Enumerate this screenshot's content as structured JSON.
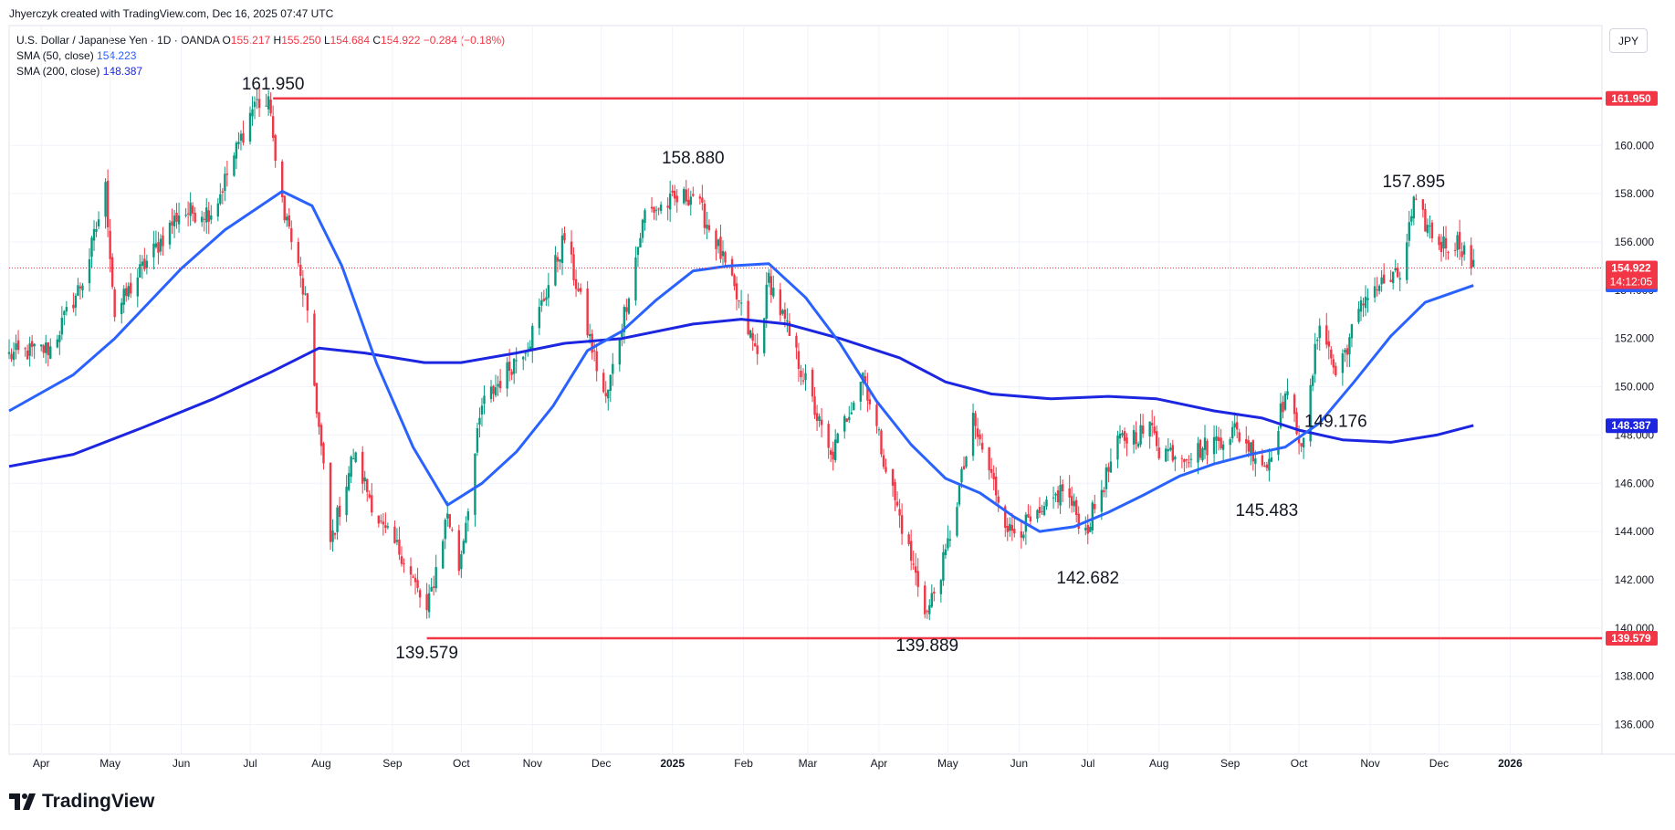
{
  "header": {
    "credit": "Jhyerczyk created with TradingView.com, Dec 16, 2025 07:47 UTC",
    "symbol": "U.S. Dollar / Japanese Yen · 1D · OANDA",
    "o_label": "O",
    "o_value": "155.217",
    "h_label": "H",
    "h_value": "155.250",
    "l_label": "L",
    "l_value": "154.684",
    "c_label": "C",
    "c_value": "154.922",
    "change": "−0.284 (−0.18%)",
    "sma50_label": "SMA (50, close)",
    "sma50_value": "154.223",
    "sma200_label": "SMA (200, close)",
    "sma200_value": "148.387"
  },
  "currency_button": "JPY",
  "brand": "TradingView",
  "colors": {
    "up": "#089981",
    "down": "#f23645",
    "sma50": "#2962ff",
    "sma200": "#1c26e0",
    "level": "#f23645",
    "grid": "#f0f3fa",
    "axis_text": "#131722"
  },
  "chart_data": {
    "type": "candlestick",
    "x_range": [
      "2024-03-18",
      "2026-02-10"
    ],
    "ylim": [
      135,
      163
    ],
    "y_ticks": [
      136,
      138,
      140,
      142,
      144,
      146,
      148,
      150,
      152,
      154,
      156,
      158,
      160
    ],
    "y_tick_labels": [
      "136.000",
      "138.000",
      "140.000",
      "142.000",
      "144.000",
      "146.000",
      "148.000",
      "150.000",
      "152.000",
      "154.000",
      "156.000",
      "158.000",
      "160.000"
    ],
    "x_ticks": [
      {
        "date": "2024-04-01",
        "label": "Apr",
        "bold": false
      },
      {
        "date": "2024-05-01",
        "label": "May",
        "bold": false
      },
      {
        "date": "2024-06-01",
        "label": "Jun",
        "bold": false
      },
      {
        "date": "2024-07-01",
        "label": "Jul",
        "bold": false
      },
      {
        "date": "2024-08-01",
        "label": "Aug",
        "bold": false
      },
      {
        "date": "2024-09-01",
        "label": "Sep",
        "bold": false
      },
      {
        "date": "2024-10-01",
        "label": "Oct",
        "bold": false
      },
      {
        "date": "2024-11-01",
        "label": "Nov",
        "bold": false
      },
      {
        "date": "2024-12-01",
        "label": "Dec",
        "bold": false
      },
      {
        "date": "2025-01-01",
        "label": "2025",
        "bold": true
      },
      {
        "date": "2025-02-01",
        "label": "Feb",
        "bold": false
      },
      {
        "date": "2025-03-01",
        "label": "Mar",
        "bold": false
      },
      {
        "date": "2025-04-01",
        "label": "Apr",
        "bold": false
      },
      {
        "date": "2025-05-01",
        "label": "May",
        "bold": false
      },
      {
        "date": "2025-06-01",
        "label": "Jun",
        "bold": false
      },
      {
        "date": "2025-07-01",
        "label": "Jul",
        "bold": false
      },
      {
        "date": "2025-08-01",
        "label": "Aug",
        "bold": false
      },
      {
        "date": "2025-09-01",
        "label": "Sep",
        "bold": false
      },
      {
        "date": "2025-10-01",
        "label": "Oct",
        "bold": false
      },
      {
        "date": "2025-11-01",
        "label": "Nov",
        "bold": false
      },
      {
        "date": "2025-12-01",
        "label": "Dec",
        "bold": false
      },
      {
        "date": "2026-01-01",
        "label": "2026",
        "bold": true
      }
    ],
    "price_path": [
      [
        "2024-03-18",
        151.3
      ],
      [
        "2024-04-05",
        151.6
      ],
      [
        "2024-04-20",
        154.6
      ],
      [
        "2024-04-29",
        158.2
      ],
      [
        "2024-05-03",
        153.0
      ],
      [
        "2024-05-15",
        154.9
      ],
      [
        "2024-05-31",
        157.2
      ],
      [
        "2024-06-15",
        157.3
      ],
      [
        "2024-07-03",
        161.8
      ],
      [
        "2024-07-10",
        161.6
      ],
      [
        "2024-07-12",
        159.0
      ],
      [
        "2024-07-25",
        153.6
      ],
      [
        "2024-08-02",
        146.5
      ],
      [
        "2024-08-05",
        143.5
      ],
      [
        "2024-08-15",
        147.2
      ],
      [
        "2024-08-28",
        144.0
      ],
      [
        "2024-09-05",
        143.1
      ],
      [
        "2024-09-16",
        140.6
      ],
      [
        "2024-09-25",
        144.8
      ],
      [
        "2024-09-30",
        142.5
      ],
      [
        "2024-10-10",
        149.2
      ],
      [
        "2024-10-31",
        152.0
      ],
      [
        "2024-11-15",
        156.2
      ],
      [
        "2024-11-28",
        151.2
      ],
      [
        "2024-12-03",
        149.4
      ],
      [
        "2024-12-20",
        157.2
      ],
      [
        "2025-01-10",
        158.0
      ],
      [
        "2025-01-20",
        156.0
      ],
      [
        "2025-02-07",
        151.3
      ],
      [
        "2025-02-12",
        154.5
      ],
      [
        "2025-02-28",
        150.2
      ],
      [
        "2025-03-11",
        147.0
      ],
      [
        "2025-03-25",
        150.6
      ],
      [
        "2025-04-04",
        146.7
      ],
      [
        "2025-04-16",
        142.5
      ],
      [
        "2025-04-22",
        140.6
      ],
      [
        "2025-04-30",
        143.0
      ],
      [
        "2025-05-12",
        148.5
      ],
      [
        "2025-05-28",
        144.0
      ],
      [
        "2025-06-10",
        144.5
      ],
      [
        "2025-06-20",
        145.8
      ],
      [
        "2025-06-30",
        144.0
      ],
      [
        "2025-07-15",
        147.8
      ],
      [
        "2025-07-30",
        148.3
      ],
      [
        "2025-08-01",
        147.4
      ],
      [
        "2025-08-15",
        147.2
      ],
      [
        "2025-09-03",
        148.2
      ],
      [
        "2025-09-17",
        146.7
      ],
      [
        "2025-09-25",
        149.7
      ],
      [
        "2025-10-03",
        147.5
      ],
      [
        "2025-10-10",
        152.9
      ],
      [
        "2025-10-17",
        150.5
      ],
      [
        "2025-10-31",
        154.0
      ],
      [
        "2025-11-14",
        154.6
      ],
      [
        "2025-11-20",
        157.5
      ],
      [
        "2025-12-01",
        155.9
      ],
      [
        "2025-12-10",
        156.0
      ],
      [
        "2025-12-16",
        154.9
      ]
    ],
    "sma50": [
      [
        "2024-03-18",
        149.0
      ],
      [
        "2024-04-15",
        150.5
      ],
      [
        "2024-05-03",
        152.0
      ],
      [
        "2024-06-01",
        154.9
      ],
      [
        "2024-06-20",
        156.5
      ],
      [
        "2024-07-15",
        158.1
      ],
      [
        "2024-07-28",
        157.5
      ],
      [
        "2024-08-10",
        155.0
      ],
      [
        "2024-08-25",
        151.0
      ],
      [
        "2024-09-10",
        147.5
      ],
      [
        "2024-09-25",
        145.1
      ],
      [
        "2024-10-10",
        146.0
      ],
      [
        "2024-10-25",
        147.3
      ],
      [
        "2024-11-10",
        149.2
      ],
      [
        "2024-11-25",
        151.5
      ],
      [
        "2024-12-10",
        152.3
      ],
      [
        "2024-12-25",
        153.6
      ],
      [
        "2025-01-10",
        154.8
      ],
      [
        "2025-01-25",
        155.0
      ],
      [
        "2025-02-12",
        155.1
      ],
      [
        "2025-02-28",
        153.7
      ],
      [
        "2025-03-15",
        151.8
      ],
      [
        "2025-03-31",
        149.4
      ],
      [
        "2025-04-15",
        147.6
      ],
      [
        "2025-04-30",
        146.2
      ],
      [
        "2025-05-15",
        145.6
      ],
      [
        "2025-05-30",
        144.6
      ],
      [
        "2025-06-10",
        144.0
      ],
      [
        "2025-06-25",
        144.2
      ],
      [
        "2025-07-10",
        144.8
      ],
      [
        "2025-07-25",
        145.5
      ],
      [
        "2025-08-10",
        146.3
      ],
      [
        "2025-08-25",
        146.8
      ],
      [
        "2025-09-10",
        147.2
      ],
      [
        "2025-09-25",
        147.5
      ],
      [
        "2025-10-10",
        148.5
      ],
      [
        "2025-10-25",
        150.2
      ],
      [
        "2025-11-10",
        152.1
      ],
      [
        "2025-11-25",
        153.5
      ],
      [
        "2025-12-16",
        154.2
      ]
    ],
    "sma200": [
      [
        "2024-03-18",
        146.7
      ],
      [
        "2024-04-15",
        147.2
      ],
      [
        "2024-05-15",
        148.3
      ],
      [
        "2024-06-15",
        149.5
      ],
      [
        "2024-07-10",
        150.6
      ],
      [
        "2024-07-31",
        151.6
      ],
      [
        "2024-08-20",
        151.4
      ],
      [
        "2024-09-15",
        151.0
      ],
      [
        "2024-10-01",
        151.0
      ],
      [
        "2024-10-25",
        151.4
      ],
      [
        "2024-11-15",
        151.8
      ],
      [
        "2024-12-10",
        152.0
      ],
      [
        "2025-01-10",
        152.6
      ],
      [
        "2025-01-31",
        152.8
      ],
      [
        "2025-02-20",
        152.6
      ],
      [
        "2025-03-15",
        152.0
      ],
      [
        "2025-04-10",
        151.2
      ],
      [
        "2025-04-30",
        150.2
      ],
      [
        "2025-05-20",
        149.7
      ],
      [
        "2025-06-15",
        149.5
      ],
      [
        "2025-07-10",
        149.6
      ],
      [
        "2025-07-31",
        149.5
      ],
      [
        "2025-08-25",
        149.0
      ],
      [
        "2025-09-15",
        148.7
      ],
      [
        "2025-10-01",
        148.2
      ],
      [
        "2025-10-20",
        147.8
      ],
      [
        "2025-11-10",
        147.7
      ],
      [
        "2025-11-30",
        148.0
      ],
      [
        "2025-12-16",
        148.4
      ]
    ],
    "levels": [
      {
        "value": 161.95,
        "label": "161.950",
        "from": "2024-07-11"
      },
      {
        "value": 139.579,
        "label": "139.579",
        "from": "2024-09-16"
      }
    ],
    "annotations": [
      {
        "label": "161.950",
        "date": "2024-07-11",
        "value": 161.95,
        "pos": "above"
      },
      {
        "label": "139.579",
        "date": "2024-09-16",
        "value": 139.579,
        "pos": "below"
      },
      {
        "label": "158.880",
        "date": "2025-01-10",
        "value": 158.88,
        "pos": "above"
      },
      {
        "label": "139.889",
        "date": "2025-04-22",
        "value": 139.889,
        "pos": "below"
      },
      {
        "label": "142.682",
        "date": "2025-07-01",
        "value": 142.682,
        "pos": "below"
      },
      {
        "label": "145.483",
        "date": "2025-09-17",
        "value": 145.483,
        "pos": "below"
      },
      {
        "label": "149.176",
        "date": "2025-10-17",
        "value": 149.176,
        "pos": "below"
      },
      {
        "label": "157.895",
        "date": "2025-11-20",
        "value": 157.895,
        "pos": "above"
      }
    ],
    "current_price": {
      "value": 154.922,
      "label": "154.922",
      "countdown": "14:12:05"
    },
    "price_badges": [
      {
        "value": 161.95,
        "label": "161.950",
        "color": "#f23645"
      },
      {
        "value": 139.579,
        "label": "139.579",
        "color": "#f23645"
      },
      {
        "value": 154.223,
        "label": "154.223",
        "color": "#2962ff"
      },
      {
        "value": 148.387,
        "label": "148.387",
        "color": "#1c26e0"
      }
    ]
  }
}
